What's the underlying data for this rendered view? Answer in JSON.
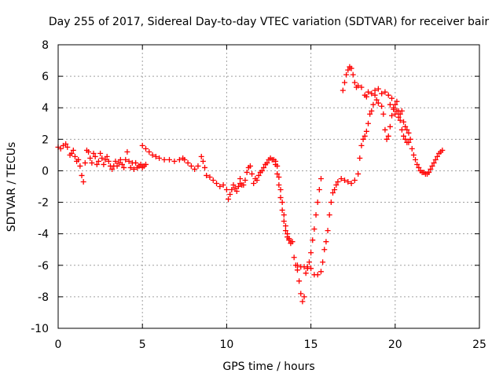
{
  "chart_data": {
    "type": "scatter",
    "title": "Day 255 of 2017, Sidereal Day-to-day VTEC variation (SDTVAR) for receiver bair",
    "xlabel": "GPS time / hours",
    "ylabel": "SDTVAR / TECUs",
    "xlim": [
      0,
      25
    ],
    "ylim": [
      -10,
      8
    ],
    "xticks": [
      0,
      5,
      10,
      15,
      20,
      25
    ],
    "yticks": [
      -10,
      -8,
      -6,
      -4,
      -2,
      0,
      2,
      4,
      6,
      8
    ],
    "grid": true,
    "marker": "+",
    "color": "#ff0000",
    "series": [
      {
        "name": "SDTVAR",
        "points": [
          [
            0.0,
            1.5
          ],
          [
            0.15,
            1.4
          ],
          [
            0.3,
            1.6
          ],
          [
            0.45,
            1.7
          ],
          [
            0.55,
            1.5
          ],
          [
            0.7,
            1.0
          ],
          [
            0.8,
            1.1
          ],
          [
            0.9,
            1.3
          ],
          [
            1.0,
            0.9
          ],
          [
            1.1,
            0.6
          ],
          [
            1.2,
            0.7
          ],
          [
            1.3,
            0.3
          ],
          [
            1.4,
            -0.3
          ],
          [
            1.5,
            -0.7
          ],
          [
            1.6,
            0.5
          ],
          [
            1.7,
            1.3
          ],
          [
            1.8,
            1.2
          ],
          [
            1.9,
            0.8
          ],
          [
            2.0,
            0.5
          ],
          [
            2.1,
            1.1
          ],
          [
            2.2,
            0.9
          ],
          [
            2.3,
            0.4
          ],
          [
            2.4,
            0.6
          ],
          [
            2.5,
            1.1
          ],
          [
            2.6,
            0.8
          ],
          [
            2.7,
            0.4
          ],
          [
            2.8,
            0.7
          ],
          [
            2.9,
            0.9
          ],
          [
            3.0,
            0.6
          ],
          [
            3.1,
            0.3
          ],
          [
            3.2,
            0.1
          ],
          [
            3.3,
            0.3
          ],
          [
            3.4,
            0.6
          ],
          [
            3.5,
            0.3
          ],
          [
            3.6,
            0.5
          ],
          [
            3.7,
            0.7
          ],
          [
            3.8,
            0.4
          ],
          [
            3.9,
            0.2
          ],
          [
            4.0,
            0.7
          ],
          [
            4.1,
            1.2
          ],
          [
            4.2,
            0.6
          ],
          [
            4.3,
            0.2
          ],
          [
            4.4,
            0.5
          ],
          [
            4.5,
            0.1
          ],
          [
            4.6,
            0.5
          ],
          [
            4.7,
            0.2
          ],
          [
            4.8,
            0.3
          ],
          [
            4.9,
            0.4
          ],
          [
            5.0,
            0.2
          ],
          [
            5.1,
            0.3
          ],
          [
            5.2,
            0.4
          ],
          [
            5.0,
            1.6
          ],
          [
            5.2,
            1.4
          ],
          [
            5.4,
            1.2
          ],
          [
            5.6,
            1.0
          ],
          [
            5.8,
            0.9
          ],
          [
            6.0,
            0.8
          ],
          [
            6.3,
            0.7
          ],
          [
            6.6,
            0.7
          ],
          [
            6.9,
            0.6
          ],
          [
            7.2,
            0.7
          ],
          [
            7.4,
            0.8
          ],
          [
            7.5,
            0.7
          ],
          [
            7.7,
            0.5
          ],
          [
            7.9,
            0.3
          ],
          [
            8.1,
            0.1
          ],
          [
            8.3,
            0.3
          ],
          [
            8.5,
            0.9
          ],
          [
            8.6,
            0.6
          ],
          [
            8.7,
            0.2
          ],
          [
            8.8,
            -0.3
          ],
          [
            9.0,
            -0.4
          ],
          [
            9.2,
            -0.6
          ],
          [
            9.4,
            -0.8
          ],
          [
            9.6,
            -1.0
          ],
          [
            9.8,
            -0.9
          ],
          [
            10.0,
            -1.2
          ],
          [
            10.1,
            -1.8
          ],
          [
            10.2,
            -1.5
          ],
          [
            10.3,
            -1.2
          ],
          [
            10.4,
            -0.9
          ],
          [
            10.5,
            -1.1
          ],
          [
            10.6,
            -1.3
          ],
          [
            10.7,
            -1.0
          ],
          [
            10.8,
            -0.8
          ],
          [
            10.9,
            -0.9
          ],
          [
            10.8,
            -0.5
          ],
          [
            11.0,
            -0.9
          ],
          [
            11.1,
            -0.6
          ],
          [
            11.2,
            -0.1
          ],
          [
            11.3,
            0.2
          ],
          [
            11.4,
            0.3
          ],
          [
            11.5,
            -0.2
          ],
          [
            11.6,
            -0.8
          ],
          [
            11.7,
            -0.5
          ],
          [
            11.8,
            -0.6
          ],
          [
            11.9,
            -0.3
          ],
          [
            12.0,
            -0.1
          ],
          [
            12.1,
            0.0
          ],
          [
            12.2,
            0.2
          ],
          [
            12.3,
            0.4
          ],
          [
            12.4,
            0.5
          ],
          [
            12.5,
            0.7
          ],
          [
            12.6,
            0.8
          ],
          [
            12.7,
            0.7
          ],
          [
            12.8,
            0.7
          ],
          [
            12.9,
            0.6
          ],
          [
            13.0,
            0.3
          ],
          [
            13.1,
            -0.4
          ],
          [
            13.2,
            -1.2
          ],
          [
            13.3,
            -2.0
          ],
          [
            13.4,
            -2.8
          ],
          [
            13.5,
            -3.5
          ],
          [
            13.6,
            -4.0
          ],
          [
            13.7,
            -4.3
          ],
          [
            12.9,
            0.4
          ],
          [
            13.0,
            -0.2
          ],
          [
            13.1,
            -0.9
          ],
          [
            13.2,
            -1.7
          ],
          [
            13.3,
            -2.5
          ],
          [
            13.4,
            -3.2
          ],
          [
            13.5,
            -3.8
          ],
          [
            13.6,
            -4.2
          ],
          [
            13.7,
            -4.4
          ],
          [
            13.8,
            -4.6
          ],
          [
            13.9,
            -4.5
          ],
          [
            14.0,
            -5.5
          ],
          [
            14.1,
            -6.0
          ],
          [
            14.2,
            -6.3
          ],
          [
            14.3,
            -7.0
          ],
          [
            14.4,
            -7.8
          ],
          [
            14.5,
            -8.3
          ],
          [
            14.6,
            -8.0
          ],
          [
            14.7,
            -6.5
          ],
          [
            14.8,
            -6.2
          ],
          [
            14.9,
            -5.8
          ],
          [
            15.0,
            -5.2
          ],
          [
            15.1,
            -4.4
          ],
          [
            15.2,
            -3.7
          ],
          [
            15.3,
            -2.8
          ],
          [
            15.4,
            -2.0
          ],
          [
            15.5,
            -1.2
          ],
          [
            15.6,
            -0.5
          ],
          [
            14.2,
            -6.0
          ],
          [
            14.4,
            -6.1
          ],
          [
            14.6,
            -6.1
          ],
          [
            14.8,
            -6.1
          ],
          [
            15.0,
            -6.2
          ],
          [
            15.2,
            -6.6
          ],
          [
            15.4,
            -6.6
          ],
          [
            15.6,
            -6.4
          ],
          [
            15.7,
            -5.8
          ],
          [
            15.8,
            -5.0
          ],
          [
            15.9,
            -4.5
          ],
          [
            16.0,
            -3.8
          ],
          [
            16.1,
            -2.8
          ],
          [
            16.2,
            -2.0
          ],
          [
            16.3,
            -1.4
          ],
          [
            16.4,
            -1.2
          ],
          [
            16.5,
            -0.9
          ],
          [
            16.6,
            -0.7
          ],
          [
            16.8,
            -0.5
          ],
          [
            17.0,
            -0.6
          ],
          [
            17.2,
            -0.7
          ],
          [
            17.4,
            -0.8
          ],
          [
            17.6,
            -0.6
          ],
          [
            17.8,
            -0.2
          ],
          [
            17.9,
            0.8
          ],
          [
            18.0,
            1.6
          ],
          [
            18.1,
            2.0
          ],
          [
            18.2,
            2.2
          ],
          [
            18.3,
            2.5
          ],
          [
            18.4,
            3.0
          ],
          [
            18.5,
            3.6
          ],
          [
            18.6,
            3.8
          ],
          [
            18.7,
            4.2
          ],
          [
            18.8,
            4.8
          ],
          [
            18.9,
            4.5
          ],
          [
            19.0,
            4.3
          ],
          [
            19.2,
            4.1
          ],
          [
            19.3,
            3.6
          ],
          [
            19.4,
            2.6
          ],
          [
            19.5,
            2.0
          ],
          [
            19.6,
            2.2
          ],
          [
            19.7,
            2.8
          ],
          [
            19.8,
            3.5
          ],
          [
            19.9,
            4.0
          ],
          [
            20.0,
            4.2
          ],
          [
            20.1,
            4.4
          ],
          [
            20.2,
            3.8
          ],
          [
            20.3,
            3.2
          ],
          [
            20.4,
            2.6
          ],
          [
            20.5,
            2.2
          ],
          [
            20.6,
            2.0
          ],
          [
            20.7,
            1.8
          ],
          [
            20.8,
            1.8
          ],
          [
            16.9,
            5.1
          ],
          [
            17.0,
            5.6
          ],
          [
            17.1,
            6.1
          ],
          [
            17.2,
            6.4
          ],
          [
            17.3,
            6.6
          ],
          [
            17.4,
            6.5
          ],
          [
            17.5,
            6.1
          ],
          [
            17.6,
            5.6
          ],
          [
            17.7,
            5.3
          ],
          [
            17.8,
            5.4
          ],
          [
            18.0,
            5.3
          ],
          [
            18.2,
            4.8
          ],
          [
            18.3,
            4.7
          ],
          [
            18.4,
            5.0
          ],
          [
            18.6,
            4.9
          ],
          [
            18.8,
            5.1
          ],
          [
            19.0,
            5.2
          ],
          [
            19.2,
            4.9
          ],
          [
            19.4,
            5.0
          ],
          [
            19.6,
            4.8
          ],
          [
            19.7,
            4.2
          ],
          [
            19.8,
            4.6
          ],
          [
            19.9,
            3.9
          ],
          [
            20.0,
            3.6
          ],
          [
            20.1,
            3.8
          ],
          [
            20.2,
            3.4
          ],
          [
            20.3,
            3.6
          ],
          [
            20.4,
            3.8
          ],
          [
            20.5,
            3.1
          ],
          [
            20.6,
            2.8
          ],
          [
            20.7,
            2.6
          ],
          [
            20.8,
            2.4
          ],
          [
            20.9,
            2.0
          ],
          [
            21.0,
            1.4
          ],
          [
            21.1,
            1.0
          ],
          [
            21.2,
            0.7
          ],
          [
            21.3,
            0.4
          ],
          [
            21.4,
            0.2
          ],
          [
            21.5,
            0.0
          ],
          [
            21.6,
            -0.1
          ],
          [
            21.7,
            -0.1
          ],
          [
            21.8,
            -0.2
          ],
          [
            21.9,
            -0.2
          ],
          [
            22.0,
            -0.1
          ],
          [
            22.1,
            0.1
          ],
          [
            22.2,
            0.3
          ],
          [
            22.3,
            0.5
          ],
          [
            22.4,
            0.7
          ],
          [
            22.5,
            0.9
          ],
          [
            22.6,
            1.1
          ],
          [
            22.7,
            1.2
          ],
          [
            22.8,
            1.3
          ]
        ]
      }
    ]
  }
}
